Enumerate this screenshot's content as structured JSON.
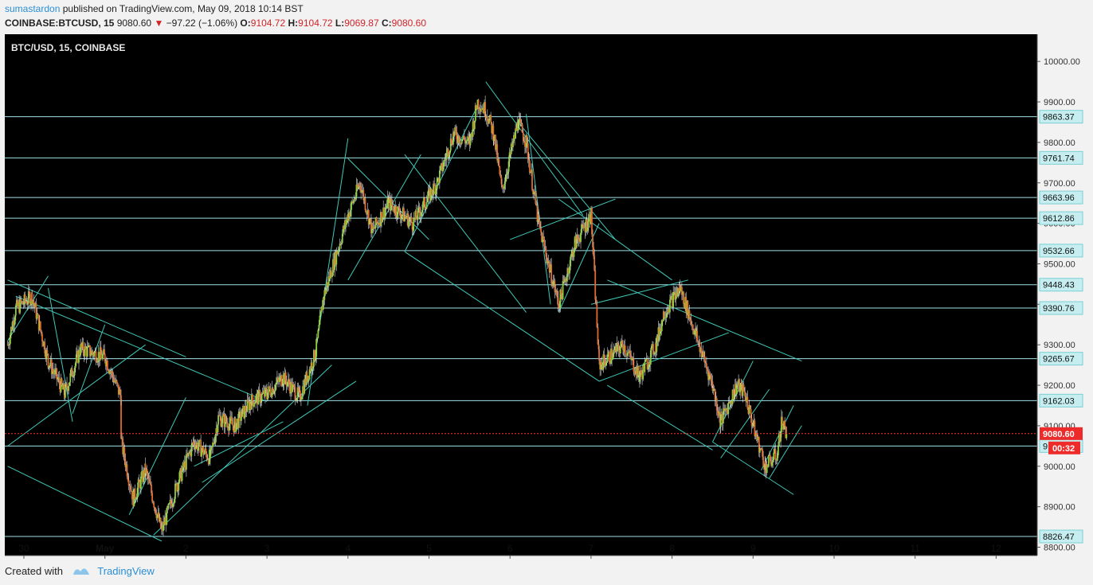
{
  "header": {
    "author": "sumastardon",
    "published_text": "published on TradingView.com, May 09, 2018 10:14 BST",
    "symbol": "COINBASE:BTCUSD, 15",
    "last": "9080.60",
    "change": "−97.22 (−1.06%)",
    "o_label": "O:",
    "o_value": "9104.72",
    "h_label": "H:",
    "h_value": "9104.72",
    "l_label": "L:",
    "l_value": "9069.87",
    "c_label": "C:",
    "c_value": "9080.60"
  },
  "chart": {
    "legend": "BTC/USD, 15, COINBASE",
    "colors": {
      "background": "#000000",
      "up": "#8ed13c",
      "down": "#e06a2c",
      "wick": "#ffffff",
      "level_line": "#9fe0e6",
      "trend_line": "#3ec9b8",
      "price_line": "#ff3333"
    },
    "price_tag": "9080.60",
    "countdown": "00:32",
    "partial_label": "9"
  },
  "chart_data": {
    "type": "candlestick",
    "title": "BTC/USD, 15, COINBASE",
    "x": [
      "30",
      "May",
      "2",
      "3",
      "4",
      "5",
      "6",
      "7",
      "8",
      "9",
      "10",
      "11",
      "12"
    ],
    "ylim": [
      8800,
      10000
    ],
    "y_ticks": [
      8800,
      8900,
      9000,
      9100,
      9200,
      9300,
      9400,
      9500,
      9600,
      9700,
      9800,
      9900,
      10000
    ],
    "y_tick_labels": [
      "8800.00",
      "8900.00",
      "9000.00",
      "9100.00",
      "9200.00",
      "9300.00",
      "9400.00",
      "9500.00",
      "9600.00",
      "9700.00",
      "9800.00",
      "9900.00",
      "10000.00"
    ],
    "horizontal_levels": [
      9863.37,
      9761.74,
      9663.96,
      9612.86,
      9532.66,
      9448.43,
      9390.76,
      9265.67,
      9162.03,
      9050,
      8826.47
    ],
    "level_labels": [
      "9863.37",
      "9761.74",
      "9663.96",
      "9612.86",
      "9532.66",
      "9448.43",
      "9390.76",
      "9265.67",
      "9162.03",
      "8826.47"
    ],
    "last_price": 9080.6,
    "price_path": [
      [
        29.8,
        9300
      ],
      [
        29.9,
        9390
      ],
      [
        30.1,
        9420
      ],
      [
        30.3,
        9260
      ],
      [
        30.5,
        9180
      ],
      [
        30.7,
        9290
      ],
      [
        31.0,
        9270
      ],
      [
        31.2,
        9170
      ],
      [
        31.2,
        9060
      ],
      [
        31.35,
        8920
      ],
      [
        31.5,
        8990
      ],
      [
        31.7,
        8840
      ],
      [
        31.9,
        8960
      ],
      [
        32.1,
        9060
      ],
      [
        32.3,
        9020
      ],
      [
        32.4,
        9120
      ],
      [
        32.6,
        9100
      ],
      [
        32.8,
        9160
      ],
      [
        33.0,
        9180
      ],
      [
        33.2,
        9220
      ],
      [
        33.4,
        9170
      ],
      [
        33.6,
        9280
      ],
      [
        33.7,
        9420
      ],
      [
        34.0,
        9620
      ],
      [
        34.15,
        9700
      ],
      [
        34.3,
        9580
      ],
      [
        34.5,
        9650
      ],
      [
        34.8,
        9600
      ],
      [
        34.95,
        9650
      ],
      [
        35.1,
        9700
      ],
      [
        35.3,
        9820
      ],
      [
        35.5,
        9800
      ],
      [
        35.6,
        9900
      ],
      [
        35.7,
        9880
      ],
      [
        35.8,
        9820
      ],
      [
        35.9,
        9680
      ],
      [
        36.1,
        9850
      ],
      [
        36.2,
        9800
      ],
      [
        36.35,
        9600
      ],
      [
        36.5,
        9480
      ],
      [
        36.6,
        9400
      ],
      [
        36.8,
        9550
      ],
      [
        37.0,
        9620
      ],
      [
        37.1,
        9250
      ],
      [
        37.4,
        9300
      ],
      [
        37.6,
        9220
      ],
      [
        37.8,
        9300
      ],
      [
        37.9,
        9380
      ],
      [
        38.1,
        9440
      ],
      [
        38.3,
        9320
      ],
      [
        38.5,
        9200
      ],
      [
        38.6,
        9110
      ],
      [
        38.8,
        9200
      ],
      [
        38.9,
        9180
      ],
      [
        39.0,
        9100
      ],
      [
        39.15,
        9000
      ],
      [
        39.3,
        9030
      ],
      [
        39.35,
        9110
      ],
      [
        39.42,
        9080.6
      ]
    ]
  }
}
